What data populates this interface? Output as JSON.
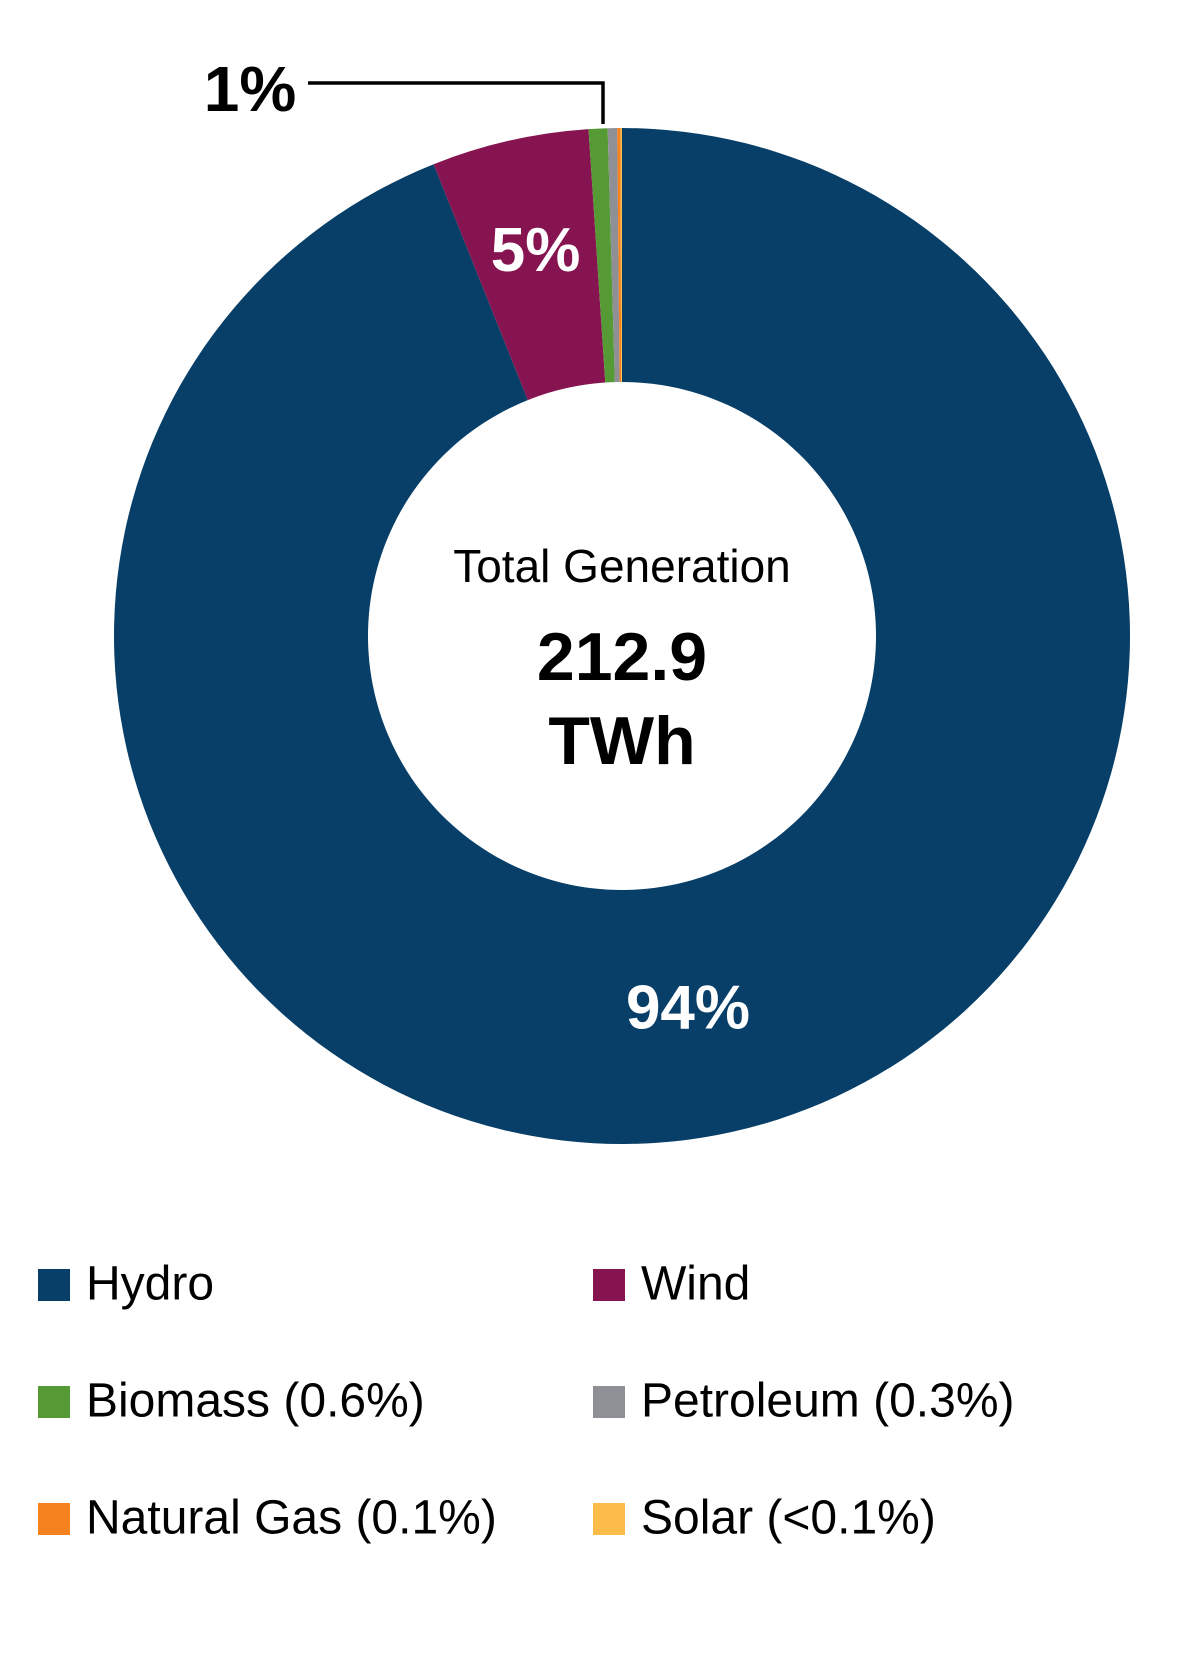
{
  "chart_data": {
    "type": "donut",
    "center_title": "Total Generation",
    "center_value": 212.9,
    "center_unit": "TWh",
    "series": [
      {
        "name": "Hydro",
        "color": "#083f68",
        "value": 94,
        "value_label": "94%"
      },
      {
        "name": "Wind",
        "color": "#861450",
        "value": 5,
        "value_label": "5%"
      },
      {
        "name": "Biomass (0.6%)",
        "color": "#569a36",
        "value": 0.6
      },
      {
        "name": "Petroleum (0.3%)",
        "color": "#8f9096",
        "value": 0.3
      },
      {
        "name": "Natural Gas (0.1%)",
        "color": "#f5821f",
        "value": 0.1
      },
      {
        "name": "Solar (<0.1%)",
        "color": "#fdbb4a",
        "value": 0.05
      }
    ],
    "annotation": "1%"
  }
}
